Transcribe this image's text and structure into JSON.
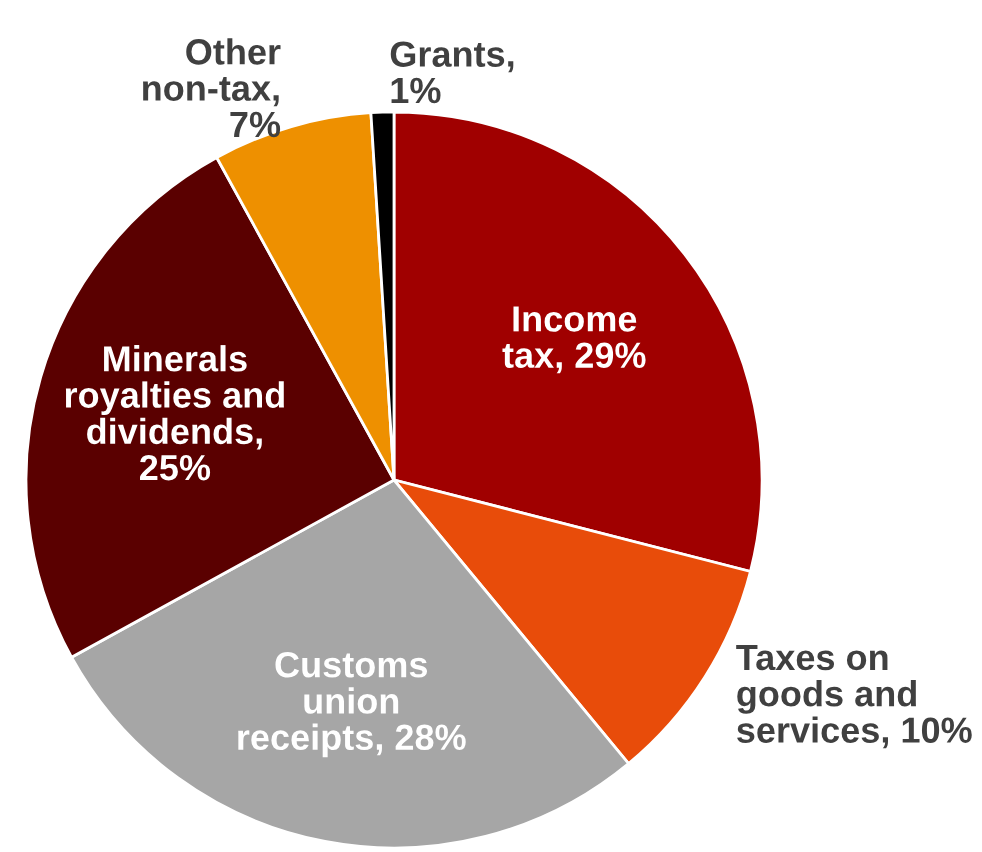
{
  "chart_data": {
    "type": "pie",
    "categories": [
      "Income\ntax, 29%",
      "Taxes on\ngoods and\nservices, 10%",
      "Customs\nunion\nreceipts, 28%",
      "Minerals\nroyalties and\ndividends,\n25%",
      "Other\nnon-tax,\n7%",
      "Grants,\n1%"
    ],
    "values": [
      29,
      10,
      28,
      25,
      7,
      1
    ],
    "colors": [
      "#a00000",
      "#e84c0a",
      "#a6a6a6",
      "#5a0000",
      "#ee9000",
      "#000000"
    ]
  }
}
